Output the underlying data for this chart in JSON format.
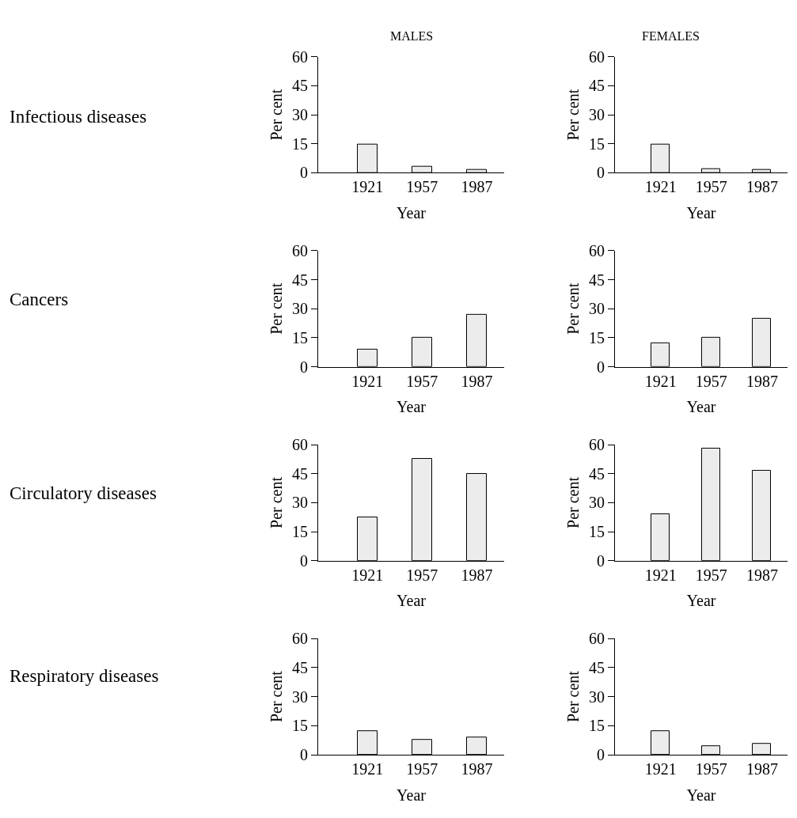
{
  "chart_data": [
    {
      "type": "bar",
      "title": "MALES",
      "annotations": [
        "Infectious diseases"
      ],
      "xlabel": "Year",
      "ylabel": "Per cent",
      "categories": [
        "1921",
        "1957",
        "1987"
      ],
      "values": [
        14.5,
        3,
        1.5
      ],
      "color": "#ececec",
      "ylim": [
        0,
        60
      ],
      "yticks": [
        0,
        15,
        30,
        45,
        60
      ]
    },
    {
      "type": "bar",
      "title": "FEMALES",
      "xlabel": "Year",
      "ylabel": "Per cent",
      "categories": [
        "1921",
        "1957",
        "1987"
      ],
      "values": [
        14.5,
        2,
        1.5
      ],
      "color": "#ececec",
      "ylim": [
        0,
        60
      ],
      "yticks": [
        0,
        15,
        30,
        45,
        60
      ]
    },
    {
      "type": "bar",
      "annotations": [
        "Cancers"
      ],
      "xlabel": "Year",
      "ylabel": "Per cent",
      "categories": [
        "1921",
        "1957",
        "1987"
      ],
      "values": [
        9,
        15,
        27
      ],
      "color": "#ececec",
      "ylim": [
        0,
        60
      ],
      "yticks": [
        0,
        15,
        30,
        45,
        60
      ]
    },
    {
      "type": "bar",
      "xlabel": "Year",
      "ylabel": "Per cent",
      "categories": [
        "1921",
        "1957",
        "1987"
      ],
      "values": [
        12,
        15,
        25
      ],
      "color": "#ececec",
      "ylim": [
        0,
        60
      ],
      "yticks": [
        0,
        15,
        30,
        45,
        60
      ]
    },
    {
      "type": "bar",
      "annotations": [
        "Circulatory diseases"
      ],
      "xlabel": "Year",
      "ylabel": "Per cent",
      "categories": [
        "1921",
        "1957",
        "1987"
      ],
      "values": [
        22.5,
        52.5,
        45
      ],
      "color": "#ececec",
      "ylim": [
        0,
        60
      ],
      "yticks": [
        0,
        15,
        30,
        45,
        60
      ]
    },
    {
      "type": "bar",
      "xlabel": "Year",
      "ylabel": "Per cent",
      "categories": [
        "1921",
        "1957",
        "1987"
      ],
      "values": [
        24,
        58,
        46.5
      ],
      "color": "#ececec",
      "ylim": [
        0,
        60
      ],
      "yticks": [
        0,
        15,
        30,
        45,
        60
      ]
    },
    {
      "type": "bar",
      "annotations": [
        "Respiratory diseases"
      ],
      "xlabel": "Year",
      "ylabel": "Per cent",
      "categories": [
        "1921",
        "1957",
        "1987"
      ],
      "values": [
        12,
        7.5,
        9
      ],
      "color": "#ececec",
      "ylim": [
        0,
        60
      ],
      "yticks": [
        0,
        15,
        30,
        45,
        60
      ]
    },
    {
      "type": "bar",
      "xlabel": "Year",
      "ylabel": "Per cent",
      "categories": [
        "1921",
        "1957",
        "1987"
      ],
      "values": [
        12,
        4.5,
        5.5
      ],
      "color": "#ececec",
      "ylim": [
        0,
        60
      ],
      "yticks": [
        0,
        15,
        30,
        45,
        60
      ]
    }
  ]
}
